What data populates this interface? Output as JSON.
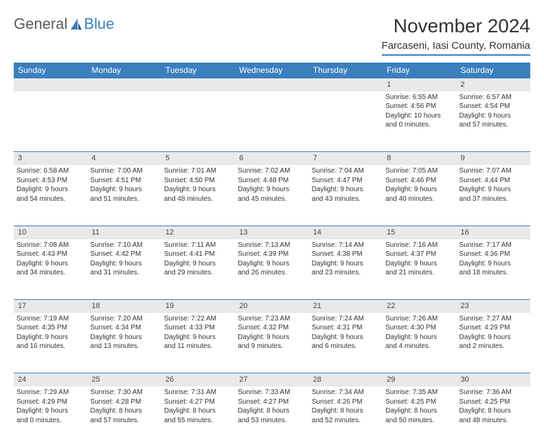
{
  "logo": {
    "text1": "General",
    "text2": "Blue"
  },
  "title": "November 2024",
  "location": "Farcaseni, Iasi County, Romania",
  "weekdays": [
    "Sunday",
    "Monday",
    "Tuesday",
    "Wednesday",
    "Thursday",
    "Friday",
    "Saturday"
  ],
  "colors": {
    "accent": "#3b7fbf",
    "header_text": "#ffffff",
    "daynum_bg": "#e9e9e9",
    "body_text": "#333333",
    "logo_gray": "#5a5a5a"
  },
  "weeks": [
    {
      "nums": [
        "",
        "",
        "",
        "",
        "",
        "1",
        "2"
      ],
      "cells": [
        null,
        null,
        null,
        null,
        null,
        {
          "sunrise": "Sunrise: 6:55 AM",
          "sunset": "Sunset: 4:56 PM",
          "day1": "Daylight: 10 hours",
          "day2": "and 0 minutes."
        },
        {
          "sunrise": "Sunrise: 6:57 AM",
          "sunset": "Sunset: 4:54 PM",
          "day1": "Daylight: 9 hours",
          "day2": "and 57 minutes."
        }
      ]
    },
    {
      "nums": [
        "3",
        "4",
        "5",
        "6",
        "7",
        "8",
        "9"
      ],
      "cells": [
        {
          "sunrise": "Sunrise: 6:58 AM",
          "sunset": "Sunset: 4:53 PM",
          "day1": "Daylight: 9 hours",
          "day2": "and 54 minutes."
        },
        {
          "sunrise": "Sunrise: 7:00 AM",
          "sunset": "Sunset: 4:51 PM",
          "day1": "Daylight: 9 hours",
          "day2": "and 51 minutes."
        },
        {
          "sunrise": "Sunrise: 7:01 AM",
          "sunset": "Sunset: 4:50 PM",
          "day1": "Daylight: 9 hours",
          "day2": "and 48 minutes."
        },
        {
          "sunrise": "Sunrise: 7:02 AM",
          "sunset": "Sunset: 4:48 PM",
          "day1": "Daylight: 9 hours",
          "day2": "and 45 minutes."
        },
        {
          "sunrise": "Sunrise: 7:04 AM",
          "sunset": "Sunset: 4:47 PM",
          "day1": "Daylight: 9 hours",
          "day2": "and 43 minutes."
        },
        {
          "sunrise": "Sunrise: 7:05 AM",
          "sunset": "Sunset: 4:46 PM",
          "day1": "Daylight: 9 hours",
          "day2": "and 40 minutes."
        },
        {
          "sunrise": "Sunrise: 7:07 AM",
          "sunset": "Sunset: 4:44 PM",
          "day1": "Daylight: 9 hours",
          "day2": "and 37 minutes."
        }
      ]
    },
    {
      "nums": [
        "10",
        "11",
        "12",
        "13",
        "14",
        "15",
        "16"
      ],
      "cells": [
        {
          "sunrise": "Sunrise: 7:08 AM",
          "sunset": "Sunset: 4:43 PM",
          "day1": "Daylight: 9 hours",
          "day2": "and 34 minutes."
        },
        {
          "sunrise": "Sunrise: 7:10 AM",
          "sunset": "Sunset: 4:42 PM",
          "day1": "Daylight: 9 hours",
          "day2": "and 31 minutes."
        },
        {
          "sunrise": "Sunrise: 7:11 AM",
          "sunset": "Sunset: 4:41 PM",
          "day1": "Daylight: 9 hours",
          "day2": "and 29 minutes."
        },
        {
          "sunrise": "Sunrise: 7:13 AM",
          "sunset": "Sunset: 4:39 PM",
          "day1": "Daylight: 9 hours",
          "day2": "and 26 minutes."
        },
        {
          "sunrise": "Sunrise: 7:14 AM",
          "sunset": "Sunset: 4:38 PM",
          "day1": "Daylight: 9 hours",
          "day2": "and 23 minutes."
        },
        {
          "sunrise": "Sunrise: 7:16 AM",
          "sunset": "Sunset: 4:37 PM",
          "day1": "Daylight: 9 hours",
          "day2": "and 21 minutes."
        },
        {
          "sunrise": "Sunrise: 7:17 AM",
          "sunset": "Sunset: 4:36 PM",
          "day1": "Daylight: 9 hours",
          "day2": "and 18 minutes."
        }
      ]
    },
    {
      "nums": [
        "17",
        "18",
        "19",
        "20",
        "21",
        "22",
        "23"
      ],
      "cells": [
        {
          "sunrise": "Sunrise: 7:19 AM",
          "sunset": "Sunset: 4:35 PM",
          "day1": "Daylight: 9 hours",
          "day2": "and 16 minutes."
        },
        {
          "sunrise": "Sunrise: 7:20 AM",
          "sunset": "Sunset: 4:34 PM",
          "day1": "Daylight: 9 hours",
          "day2": "and 13 minutes."
        },
        {
          "sunrise": "Sunrise: 7:22 AM",
          "sunset": "Sunset: 4:33 PM",
          "day1": "Daylight: 9 hours",
          "day2": "and 11 minutes."
        },
        {
          "sunrise": "Sunrise: 7:23 AM",
          "sunset": "Sunset: 4:32 PM",
          "day1": "Daylight: 9 hours",
          "day2": "and 9 minutes."
        },
        {
          "sunrise": "Sunrise: 7:24 AM",
          "sunset": "Sunset: 4:31 PM",
          "day1": "Daylight: 9 hours",
          "day2": "and 6 minutes."
        },
        {
          "sunrise": "Sunrise: 7:26 AM",
          "sunset": "Sunset: 4:30 PM",
          "day1": "Daylight: 9 hours",
          "day2": "and 4 minutes."
        },
        {
          "sunrise": "Sunrise: 7:27 AM",
          "sunset": "Sunset: 4:29 PM",
          "day1": "Daylight: 9 hours",
          "day2": "and 2 minutes."
        }
      ]
    },
    {
      "nums": [
        "24",
        "25",
        "26",
        "27",
        "28",
        "29",
        "30"
      ],
      "cells": [
        {
          "sunrise": "Sunrise: 7:29 AM",
          "sunset": "Sunset: 4:29 PM",
          "day1": "Daylight: 9 hours",
          "day2": "and 0 minutes."
        },
        {
          "sunrise": "Sunrise: 7:30 AM",
          "sunset": "Sunset: 4:28 PM",
          "day1": "Daylight: 8 hours",
          "day2": "and 57 minutes."
        },
        {
          "sunrise": "Sunrise: 7:31 AM",
          "sunset": "Sunset: 4:27 PM",
          "day1": "Daylight: 8 hours",
          "day2": "and 55 minutes."
        },
        {
          "sunrise": "Sunrise: 7:33 AM",
          "sunset": "Sunset: 4:27 PM",
          "day1": "Daylight: 8 hours",
          "day2": "and 53 minutes."
        },
        {
          "sunrise": "Sunrise: 7:34 AM",
          "sunset": "Sunset: 4:26 PM",
          "day1": "Daylight: 8 hours",
          "day2": "and 52 minutes."
        },
        {
          "sunrise": "Sunrise: 7:35 AM",
          "sunset": "Sunset: 4:25 PM",
          "day1": "Daylight: 8 hours",
          "day2": "and 50 minutes."
        },
        {
          "sunrise": "Sunrise: 7:36 AM",
          "sunset": "Sunset: 4:25 PM",
          "day1": "Daylight: 8 hours",
          "day2": "and 48 minutes."
        }
      ]
    }
  ]
}
